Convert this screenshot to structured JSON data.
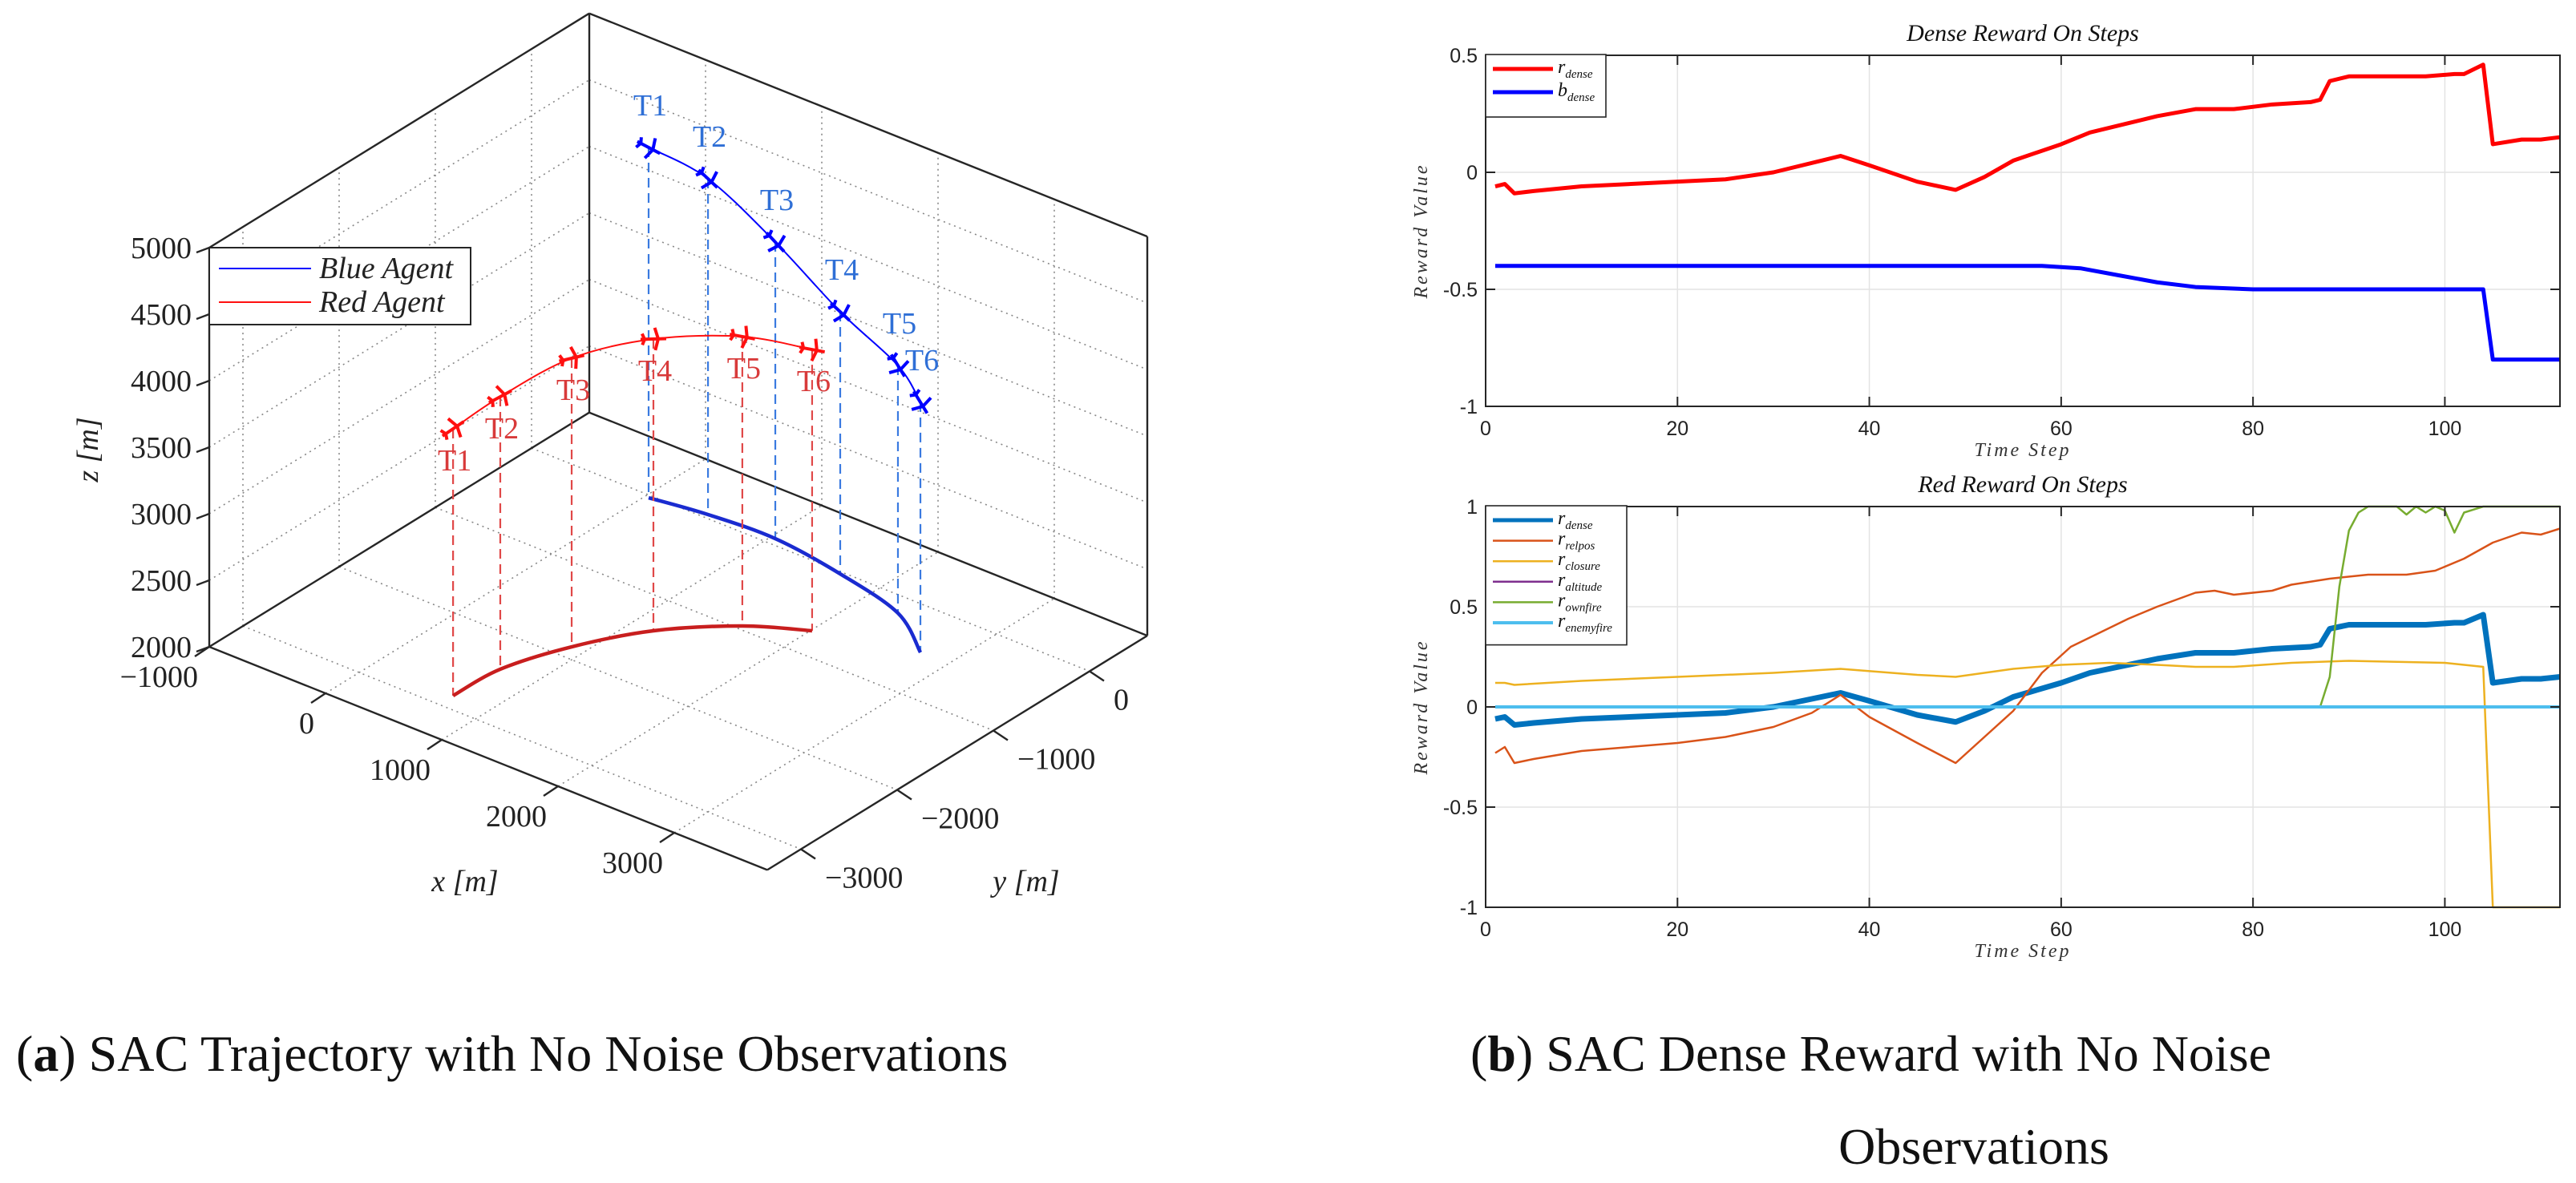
{
  "captions": {
    "a": {
      "open": "(",
      "label": "a",
      "close": ")",
      "text": " SAC Trajectory with No Noise Observations"
    },
    "b": {
      "open": "(",
      "label": "b",
      "close": ")",
      "text": " SAC Dense Reward with No Noise",
      "text_line2": "Observations"
    }
  },
  "chart_data": [
    {
      "type": "line3d",
      "title": "",
      "xlabel": "x [m]",
      "ylabel": "y [m]",
      "zlabel": "z [m]",
      "xlim": [
        -1000,
        3800
      ],
      "ylim": [
        -3350,
        600
      ],
      "zlim": [
        2000,
        5000
      ],
      "xticks": [
        -1000,
        0,
        1000,
        2000,
        3000
      ],
      "xtick_labels": [
        "−1000",
        "0",
        "1000",
        "2000",
        "3000"
      ],
      "yticks": [
        0,
        -1000,
        -2000,
        -3000
      ],
      "ytick_labels": [
        "0",
        "−1000",
        "−2000",
        "−3000"
      ],
      "zticks": [
        2000,
        2500,
        3000,
        3500,
        4000,
        4500,
        5000
      ],
      "ztick_labels": [
        "2000",
        "2500",
        "3000",
        "3500",
        "4000",
        "4500",
        "5000"
      ],
      "grid": true,
      "legend_position": "top-left",
      "legend": [
        "Blue Agent",
        "Red Agent"
      ],
      "series": [
        {
          "name": "Blue Agent",
          "color": "#0000ff",
          "label_color": "#2f6fd6",
          "ground_color": "#1a2bd0",
          "drop_color": "#3a7ae0",
          "points": [
            {
              "label": "T1",
              "x": 31,
              "y": -29,
              "z": 4633
            },
            {
              "label": "T2",
              "x": 483,
              "y": 42,
              "z": 4524
            },
            {
              "label": "T3",
              "x": 1038,
              "y": 71,
              "z": 4229
            },
            {
              "label": "T4",
              "x": 1675,
              "y": -24,
              "z": 3970
            },
            {
              "label": "T5",
              "x": 2308,
              "y": -189,
              "z": 3861
            },
            {
              "label": "T6",
              "x": 2758,
              "y": -499,
              "z": 3880
            }
          ]
        },
        {
          "name": "Red Agent",
          "color": "#ff1010",
          "label_color": "#d83a3a",
          "ground_color": "#c81e1e",
          "drop_color": "#e04848",
          "points": [
            {
              "label": "T1",
              "x": 686,
              "y": -2853,
              "z": 4006
            },
            {
              "label": "T2",
              "x": 708,
              "y": -2389,
              "z": 4048
            },
            {
              "label": "T3",
              "x": 891,
              "y": -1868,
              "z": 4169
            },
            {
              "label": "T4",
              "x": 1182,
              "y": -1370,
              "z": 4193
            },
            {
              "label": "T5",
              "x": 1605,
              "y": -957,
              "z": 4175
            },
            {
              "label": "T6",
              "x": 2010,
              "y": -721,
              "z": 4114
            }
          ]
        }
      ]
    },
    {
      "type": "line",
      "title": "Dense Reward On Steps",
      "xlabel": "Time  Step",
      "ylabel": "Reward  Value",
      "xlim": [
        0,
        112
      ],
      "ylim": [
        -1,
        0.5
      ],
      "xticks": [
        0,
        20,
        40,
        60,
        80,
        100
      ],
      "yticks": [
        -1,
        -0.5,
        0,
        0.5
      ],
      "ytick_labels": [
        "-1",
        "-0.5",
        "0",
        "0.5"
      ],
      "grid": true,
      "legend_position": "top-left",
      "series": [
        {
          "name": "r_dense",
          "legend_main": "r",
          "legend_sub": "dense",
          "color": "#ff0000",
          "width": 5,
          "x": [
            1,
            2,
            3,
            5,
            10,
            20,
            25,
            30,
            35,
            37,
            40,
            45,
            49,
            52,
            55,
            60,
            63,
            67,
            70,
            74,
            78,
            82,
            86,
            87,
            88,
            90,
            95,
            98,
            101,
            102,
            104,
            105,
            108,
            110,
            112
          ],
          "y": [
            -0.06,
            -0.05,
            -0.09,
            -0.08,
            -0.06,
            -0.04,
            -0.03,
            0,
            0.05,
            0.07,
            0.03,
            -0.04,
            -0.075,
            -0.02,
            0.05,
            0.12,
            0.17,
            0.21,
            0.24,
            0.27,
            0.27,
            0.29,
            0.3,
            0.31,
            0.39,
            0.41,
            0.41,
            0.41,
            0.42,
            0.42,
            0.46,
            0.12,
            0.14,
            0.14,
            0.15
          ]
        },
        {
          "name": "b_dense",
          "legend_main": "b",
          "legend_sub": "dense",
          "color": "#0000ff",
          "width": 5,
          "x": [
            1,
            58,
            62,
            66,
            70,
            74,
            80,
            104,
            105,
            112
          ],
          "y": [
            -0.4,
            -0.4,
            -0.41,
            -0.44,
            -0.47,
            -0.49,
            -0.5,
            -0.5,
            -0.8,
            -0.8
          ]
        }
      ]
    },
    {
      "type": "line",
      "title": "Red Reward On Steps",
      "xlabel": "Time  Step",
      "ylabel": "Reward  Value",
      "xlim": [
        0,
        112
      ],
      "ylim": [
        -1,
        1
      ],
      "xticks": [
        0,
        20,
        40,
        60,
        80,
        100
      ],
      "yticks": [
        -1,
        -0.5,
        0,
        0.5,
        1
      ],
      "ytick_labels": [
        "-1",
        "-0.5",
        "0",
        "0.5",
        "1"
      ],
      "grid": true,
      "legend_position": "top-left",
      "series": [
        {
          "name": "r_dense",
          "legend_main": "r",
          "legend_sub": "dense",
          "color": "#0072bd",
          "width": 7,
          "x": [
            1,
            2,
            3,
            5,
            10,
            20,
            25,
            30,
            35,
            37,
            40,
            45,
            49,
            52,
            55,
            60,
            63,
            67,
            70,
            74,
            78,
            82,
            86,
            87,
            88,
            90,
            95,
            98,
            101,
            102,
            104,
            105,
            108,
            110,
            112
          ],
          "y": [
            -0.06,
            -0.05,
            -0.09,
            -0.08,
            -0.06,
            -0.04,
            -0.03,
            0,
            0.05,
            0.07,
            0.03,
            -0.04,
            -0.075,
            -0.02,
            0.05,
            0.12,
            0.17,
            0.21,
            0.24,
            0.27,
            0.27,
            0.29,
            0.3,
            0.31,
            0.39,
            0.41,
            0.41,
            0.41,
            0.42,
            0.42,
            0.46,
            0.12,
            0.14,
            0.14,
            0.15
          ]
        },
        {
          "name": "r_relpos",
          "legend_main": "r",
          "legend_sub": "relpos",
          "color": "#d95319",
          "width": 2.5,
          "x": [
            1,
            2,
            3,
            5,
            10,
            20,
            25,
            30,
            34,
            37,
            40,
            45,
            49,
            52,
            55,
            58,
            61,
            64,
            67,
            70,
            74,
            76,
            78,
            82,
            84,
            88,
            92,
            96,
            99,
            102,
            105,
            108,
            110,
            112
          ],
          "y": [
            -0.23,
            -0.2,
            -0.28,
            -0.26,
            -0.22,
            -0.18,
            -0.15,
            -0.1,
            -0.03,
            0.06,
            -0.05,
            -0.18,
            -0.28,
            -0.15,
            -0.02,
            0.17,
            0.3,
            0.37,
            0.44,
            0.5,
            0.57,
            0.58,
            0.56,
            0.58,
            0.61,
            0.64,
            0.66,
            0.66,
            0.68,
            0.74,
            0.82,
            0.87,
            0.86,
            0.89
          ]
        },
        {
          "name": "r_closure",
          "legend_main": "r",
          "legend_sub": "closure",
          "color": "#edb120",
          "width": 2.5,
          "x": [
            1,
            2,
            3,
            10,
            20,
            30,
            37,
            45,
            49,
            55,
            60,
            65,
            70,
            74,
            78,
            84,
            90,
            100,
            104,
            105,
            112
          ],
          "y": [
            0.12,
            0.12,
            0.11,
            0.13,
            0.15,
            0.17,
            0.19,
            0.16,
            0.15,
            0.19,
            0.21,
            0.22,
            0.21,
            0.2,
            0.2,
            0.22,
            0.23,
            0.22,
            0.2,
            -1,
            -1
          ]
        },
        {
          "name": "r_altitude",
          "legend_main": "r",
          "legend_sub": "altitude",
          "color": "#7e2f8e",
          "width": 2.5,
          "x": [
            1,
            112
          ],
          "y": [
            0,
            0
          ]
        },
        {
          "name": "r_ownfire",
          "legend_main": "r",
          "legend_sub": "ownfire",
          "color": "#77ac30",
          "width": 2.5,
          "x": [
            87,
            88,
            89,
            90,
            91,
            92,
            95,
            96,
            97,
            98,
            99,
            100,
            101,
            102,
            104,
            112
          ],
          "y": [
            0,
            0.15,
            0.6,
            0.88,
            0.97,
            1,
            1,
            0.96,
            1,
            0.97,
            1,
            0.98,
            0.87,
            0.97,
            1,
            1
          ]
        },
        {
          "name": "r_enemyfire",
          "legend_main": "r",
          "legend_sub": "enemyfire",
          "color": "#4dbeee",
          "width": 4,
          "x": [
            1,
            112
          ],
          "y": [
            0,
            0
          ]
        }
      ]
    }
  ]
}
